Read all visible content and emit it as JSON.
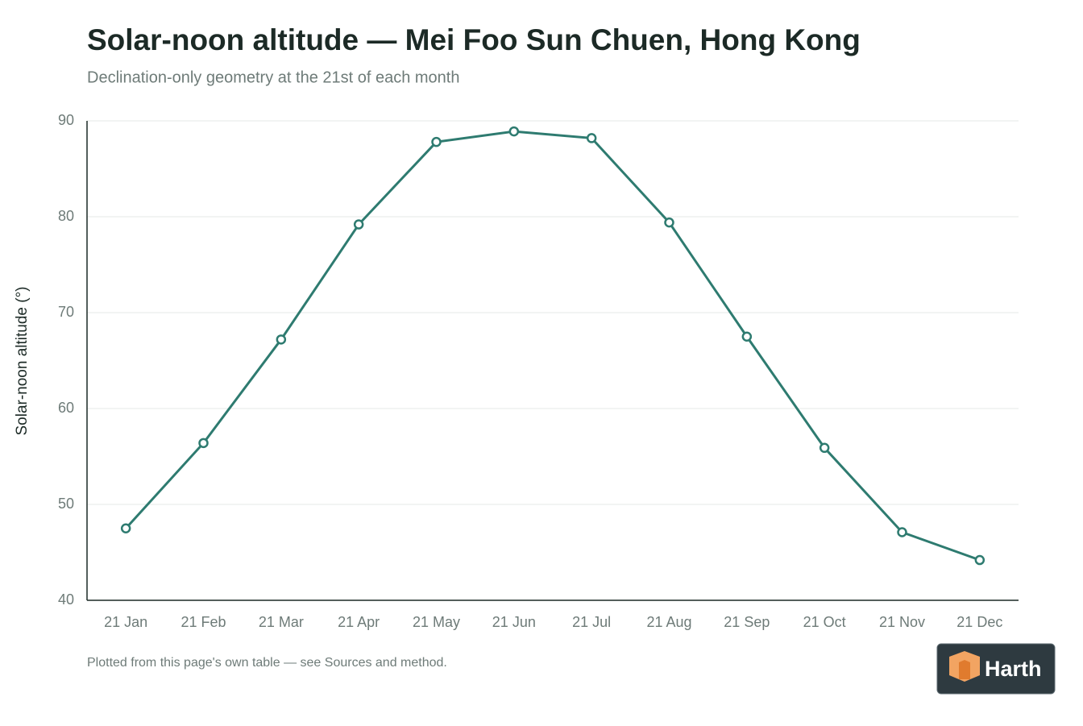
{
  "chart_data": {
    "type": "line",
    "title": "Solar-noon altitude — Mei Foo Sun Chuen, Hong Kong",
    "subtitle": "Declination-only geometry at the 21st of each month",
    "y_label": "Solar-noon altitude (°)",
    "categories": [
      "21 Jan",
      "21 Feb",
      "21 Mar",
      "21 Apr",
      "21 May",
      "21 Jun",
      "21 Jul",
      "21 Aug",
      "21 Sep",
      "21 Oct",
      "21 Nov",
      "21 Dec"
    ],
    "values": [
      47.5,
      56.4,
      67.2,
      79.2,
      87.8,
      88.9,
      88.2,
      79.4,
      67.5,
      55.9,
      47.1,
      44.2
    ],
    "color": "#2e7b70",
    "ylim": [
      40,
      90
    ],
    "yticks": [
      40,
      50,
      60,
      70,
      80,
      90
    ],
    "grid": true,
    "footnote": "Plotted from this page's own table — see Sources and method."
  },
  "brand": "Harth"
}
